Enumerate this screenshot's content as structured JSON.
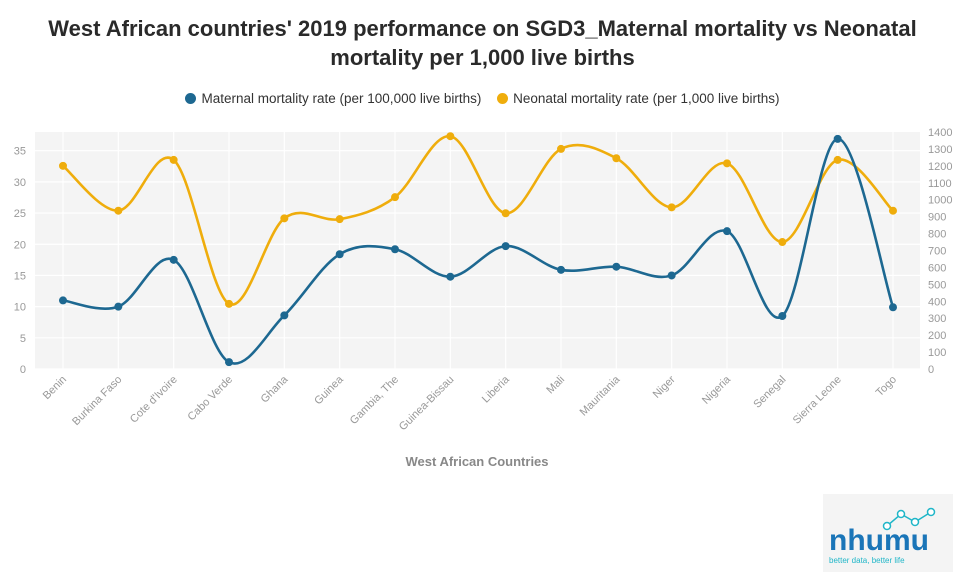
{
  "title": "West African countries' 2019 performance on SGD3_Maternal mortality vs Neonatal mortality per 1,000 live births",
  "legend": {
    "maternal_label": "Maternal mortality rate (per 100,000 live births)",
    "neonatal_label": "Neonatal mortality rate (per 1,000 live births)"
  },
  "colors": {
    "maternal": "#1d6891",
    "neonatal": "#efad0c",
    "plot_bg": "#f4f4f4",
    "grid": "#ffffff"
  },
  "logo": {
    "word": "nhumu",
    "tagline": "better data, better life"
  },
  "chart_data": {
    "type": "line",
    "title": "West African countries' 2019 performance on SGD3_Maternal mortality vs Neonatal mortality per 1,000 live births",
    "xlabel": "West African Countries",
    "categories": [
      "Benin",
      "Burkina Faso",
      "Cote d'Ivoire",
      "Cabo Verde",
      "Ghana",
      "Guinea",
      "Gambia, The",
      "Guinea-Bissau",
      "Liberia",
      "Mali",
      "Mauritania",
      "Niger",
      "Nigeria",
      "Senegal",
      "Sierra Leone",
      "Togo"
    ],
    "left_axis": {
      "ylim": [
        0,
        38
      ],
      "ticks": [
        0,
        5,
        10,
        15,
        20,
        25,
        30,
        35
      ]
    },
    "right_axis": {
      "ylim": [
        0,
        1400
      ],
      "ticks": [
        0,
        100,
        200,
        300,
        400,
        500,
        600,
        700,
        800,
        900,
        1000,
        1100,
        1200,
        1300,
        1400
      ]
    },
    "series": [
      {
        "name": "Maternal mortality rate (per 100,000 live births)",
        "axis": "left",
        "values": [
          11.0,
          10.0,
          17.5,
          1.1,
          8.6,
          18.4,
          19.2,
          14.8,
          19.7,
          15.9,
          16.4,
          15.0,
          22.1,
          8.5,
          36.9,
          9.9
        ]
      },
      {
        "name": "Neonatal mortality rate (per 1,000 live births)",
        "axis": "right",
        "values": [
          1200,
          935,
          1235,
          385,
          890,
          885,
          1015,
          1375,
          920,
          1300,
          1245,
          955,
          1215,
          750,
          1235,
          935
        ]
      }
    ],
    "grid": true,
    "legend_position": "top"
  }
}
